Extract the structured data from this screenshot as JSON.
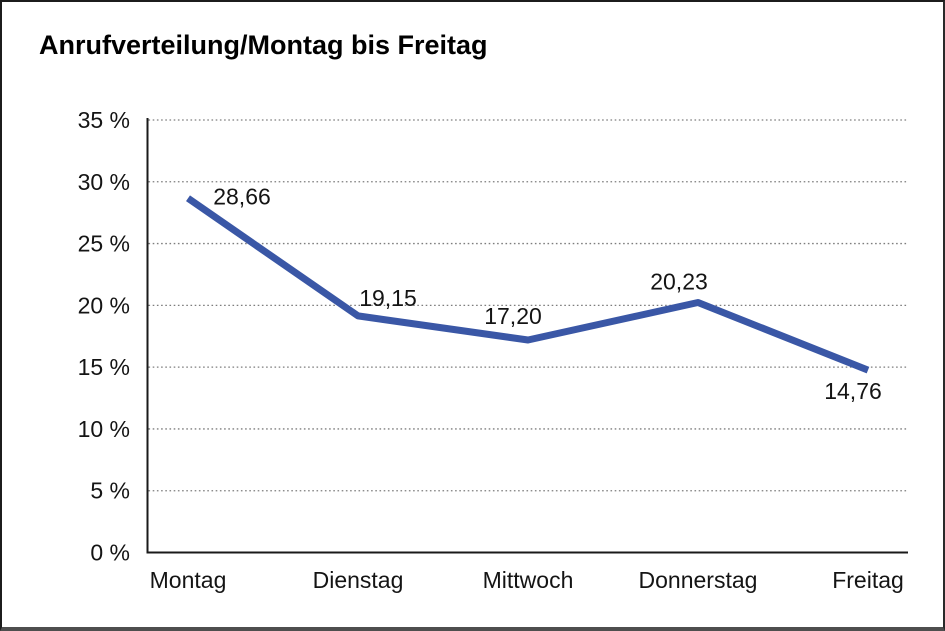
{
  "chart_data": {
    "type": "line",
    "title": "Anrufverteilung/Montag bis Freitag",
    "categories": [
      "Montag",
      "Dienstag",
      "Mittwoch",
      "Donnerstag",
      "Freitag"
    ],
    "series": [
      {
        "name": "Anrufverteilung",
        "values": [
          28.66,
          19.15,
          17.2,
          20.23,
          14.76
        ],
        "point_labels": [
          "28,66",
          "19,15",
          "17,20",
          "20,23",
          "14,76"
        ]
      }
    ],
    "xlabel": "",
    "ylabel": "",
    "ylim": [
      0,
      35
    ],
    "y_tick_step": 5,
    "y_tick_labels": [
      "0 %",
      "5 %",
      "10 %",
      "15 %",
      "20 %",
      "25 %",
      "30 %",
      "35 %"
    ],
    "grid": "horizontal-dotted",
    "legend": "none",
    "colors": {
      "line": "#3A57A6",
      "axis": "#1a1a1a",
      "gridline": "#7d7d7d",
      "text": "#141414"
    }
  }
}
